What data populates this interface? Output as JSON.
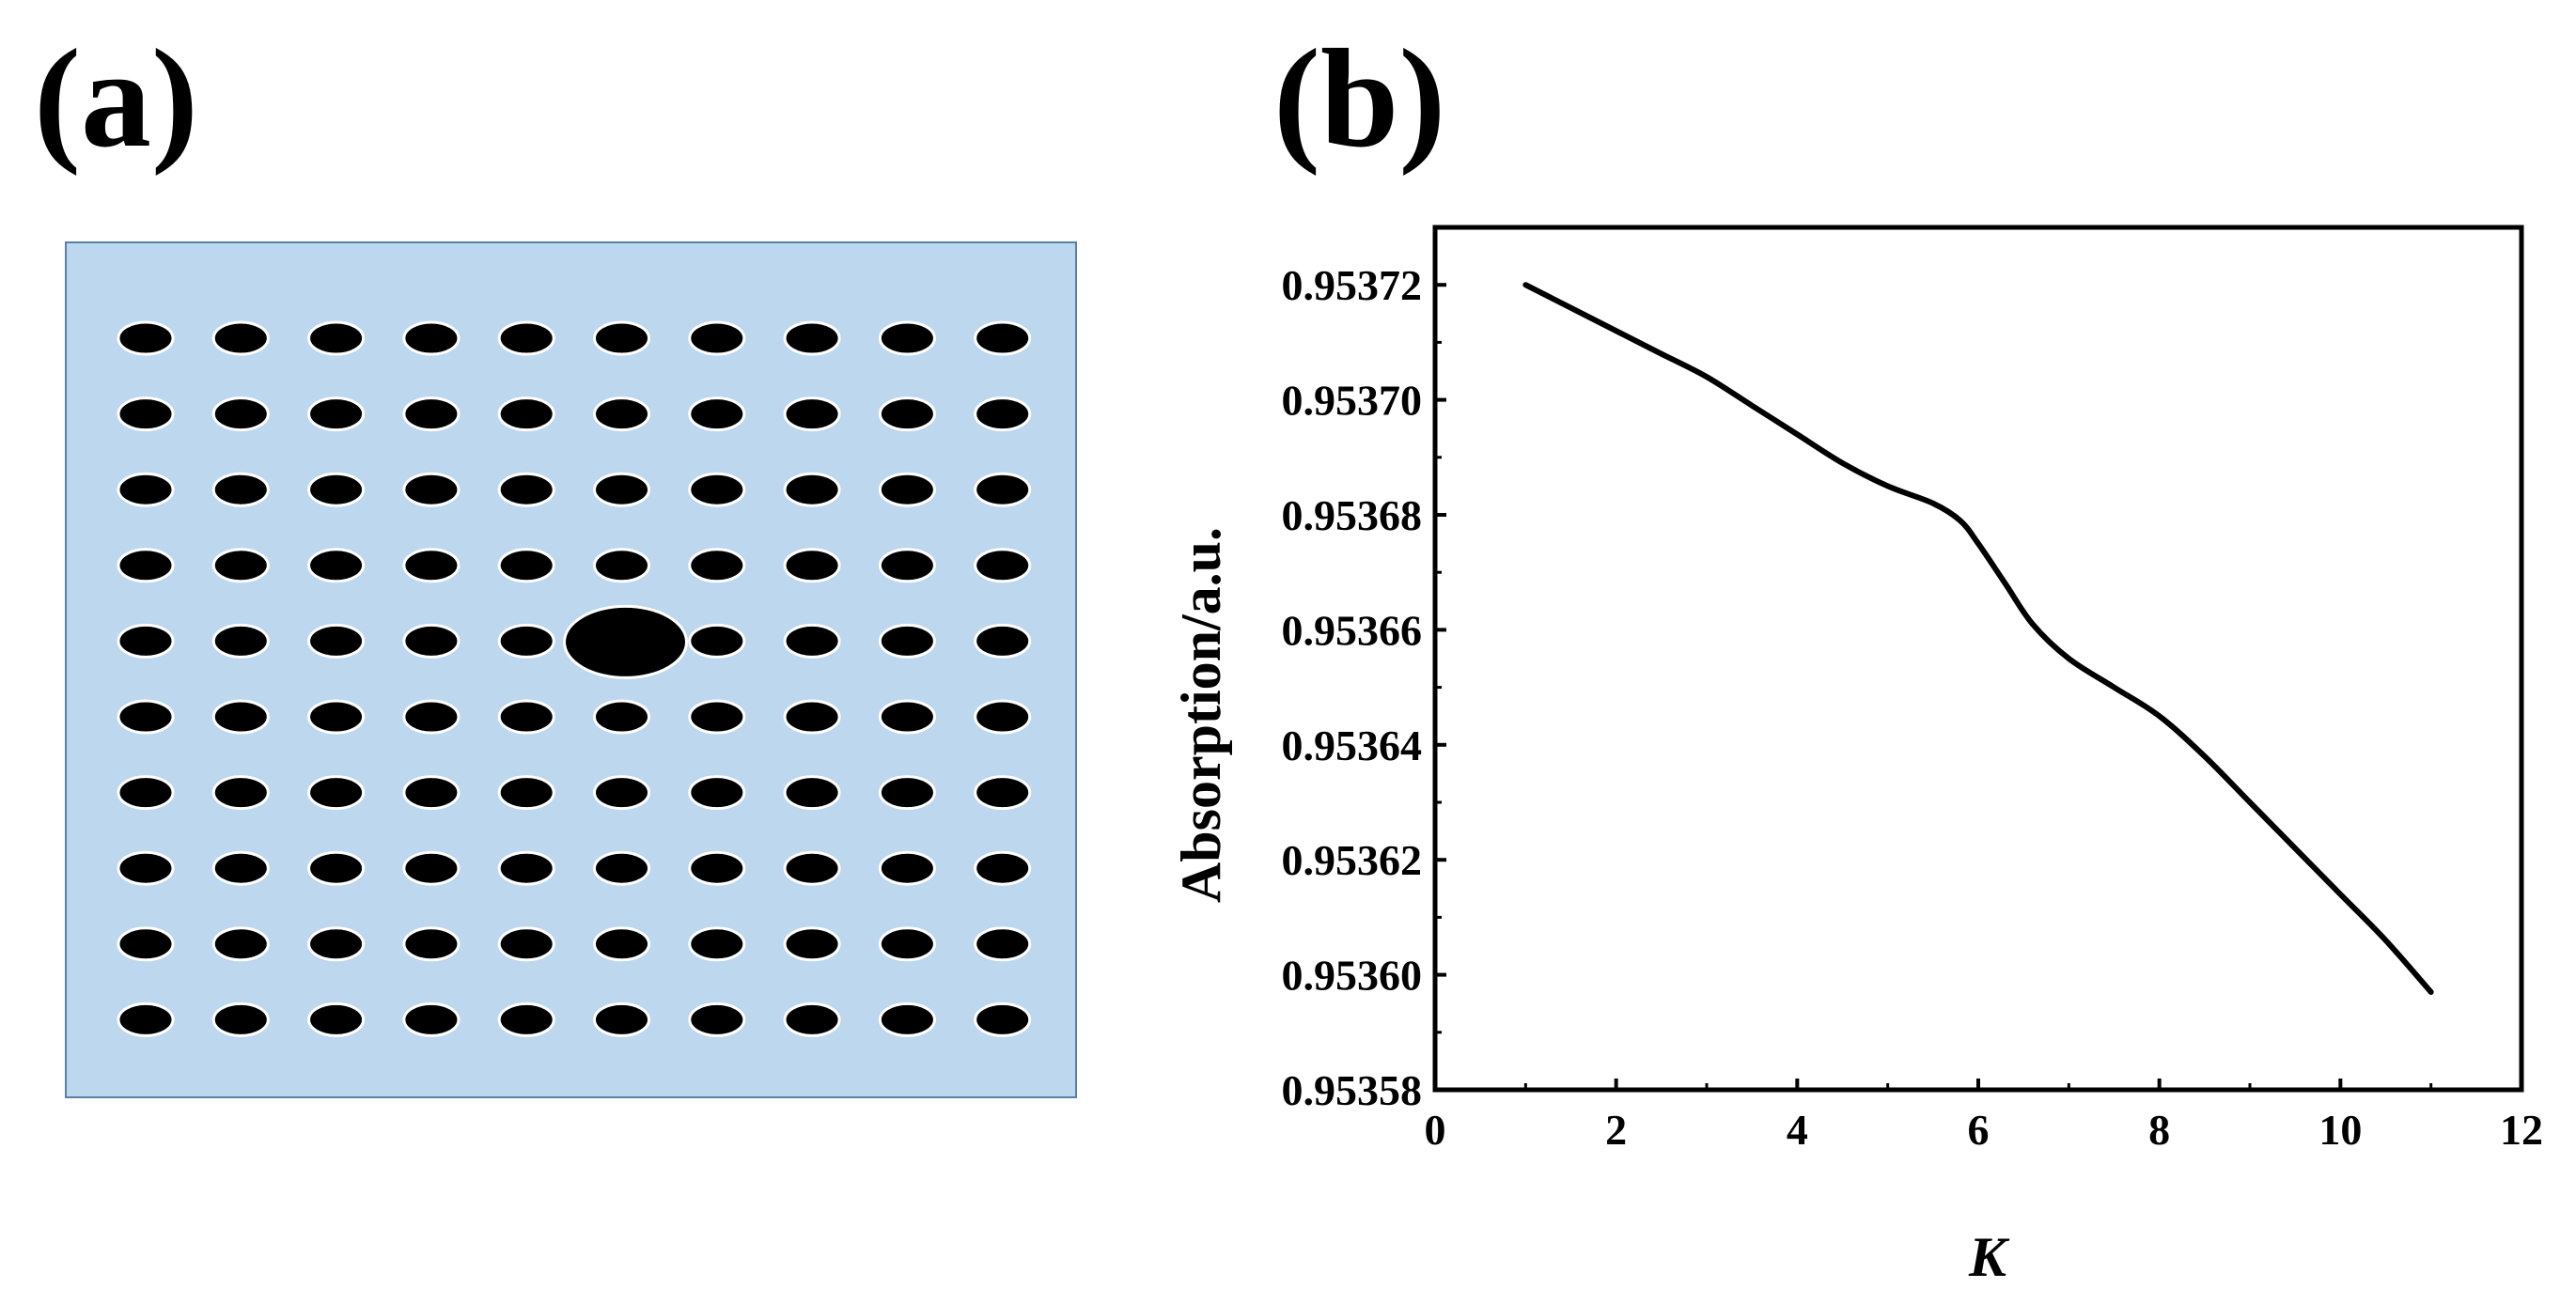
{
  "panels": {
    "a_label": "(a)",
    "b_label": "(b)"
  },
  "lattice": {
    "background_color": "#bdd7ee",
    "border_color": "#5a7fa8",
    "hole_color": "#000000",
    "rows": 10,
    "columns": 10,
    "defect_row": 5,
    "defect_column": 6
  },
  "chart_data": {
    "type": "line",
    "title": "",
    "xlabel": "K",
    "ylabel": "Absorption/a.u.",
    "xlim": [
      0,
      12
    ],
    "ylim": [
      0.95358,
      0.95373
    ],
    "xticks": [
      0,
      2,
      4,
      6,
      8,
      10,
      12
    ],
    "yticks": [
      0.95358,
      0.9536,
      0.95362,
      0.95364,
      0.95366,
      0.95368,
      0.9537,
      0.95372
    ],
    "xtick_labels": [
      "0",
      "2",
      "4",
      "6",
      "8",
      "10",
      "12"
    ],
    "ytick_labels": [
      "0.95358",
      "0.95360",
      "0.95362",
      "0.95364",
      "0.95366",
      "0.95368",
      "0.95370",
      "0.95372"
    ],
    "grid": false,
    "series": [
      {
        "color": "#000000",
        "x": [
          1,
          1.5,
          2,
          2.5,
          3,
          3.5,
          4,
          4.5,
          5,
          5.5,
          5.8,
          6,
          6.3,
          6.6,
          7,
          7.5,
          8,
          8.5,
          9,
          9.5,
          10,
          10.5,
          11
        ],
        "y": [
          0.95372,
          0.953716,
          0.953712,
          0.953708,
          0.953704,
          0.953699,
          0.953694,
          0.953689,
          0.953685,
          0.953682,
          0.953679,
          0.953675,
          0.953668,
          0.953661,
          0.953655,
          0.95365,
          0.953645,
          0.953638,
          0.95363,
          0.953622,
          0.953614,
          0.953606,
          0.953597
        ]
      }
    ]
  }
}
